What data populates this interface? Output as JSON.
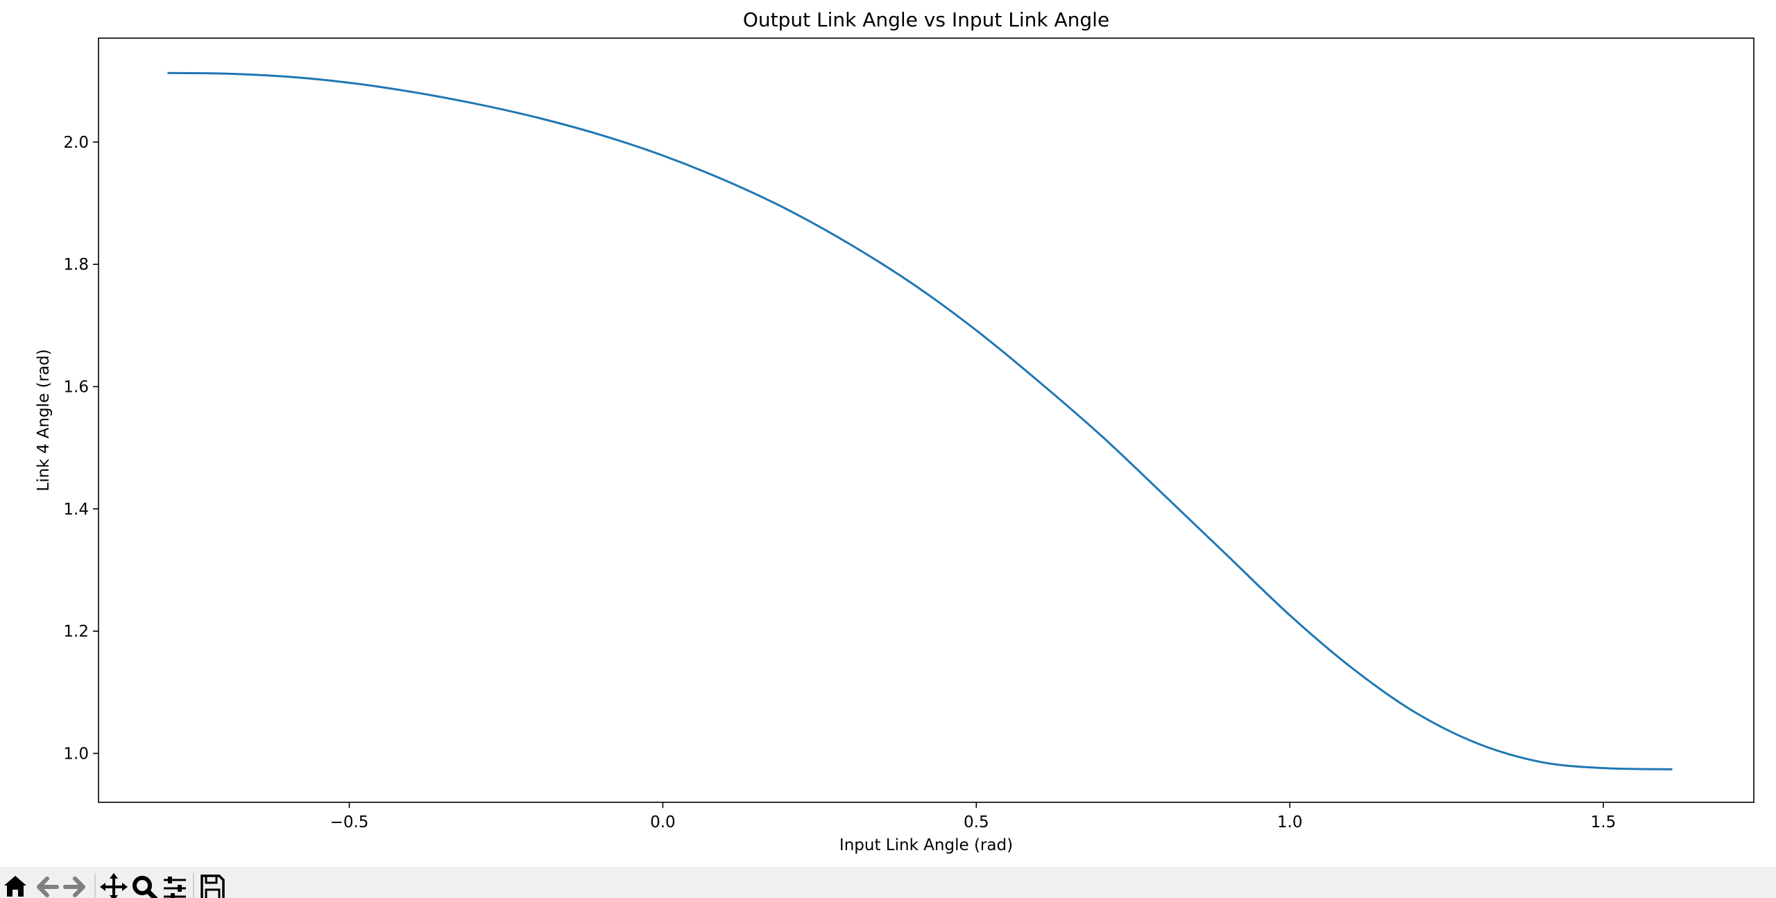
{
  "chart_data": {
    "type": "line",
    "title": "Output Link Angle vs Input Link Angle",
    "xlabel": "Input Link Angle (rad)",
    "ylabel": "Link 4 Angle (rad)",
    "xlim": [
      -0.9,
      1.74
    ],
    "ylim": [
      0.92,
      2.17
    ],
    "xticks": [
      -0.5,
      0.0,
      0.5,
      1.0,
      1.5
    ],
    "xtick_labels": [
      "−0.5",
      "0.0",
      "0.5",
      "1.0",
      "1.5"
    ],
    "yticks": [
      1.0,
      1.2,
      1.4,
      1.6,
      1.8,
      2.0
    ],
    "ytick_labels": [
      "1.0",
      "1.2",
      "1.4",
      "1.6",
      "1.8",
      "2.0"
    ],
    "grid": false,
    "legend": "none",
    "series": [
      {
        "color": "#1f77b4",
        "x": [
          -0.79,
          -0.7,
          -0.6,
          -0.5,
          -0.4,
          -0.3,
          -0.2,
          -0.1,
          0.0,
          0.1,
          0.2,
          0.3,
          0.4,
          0.5,
          0.6,
          0.7,
          0.8,
          0.9,
          1.0,
          1.1,
          1.2,
          1.3,
          1.4,
          1.5,
          1.61
        ],
        "y": [
          2.113,
          2.112,
          2.107,
          2.097,
          2.082,
          2.063,
          2.04,
          2.012,
          1.978,
          1.937,
          1.889,
          1.832,
          1.767,
          1.692,
          1.608,
          1.519,
          1.422,
          1.324,
          1.226,
          1.139,
          1.067,
          1.016,
          0.986,
          0.976,
          0.974
        ]
      }
    ]
  },
  "toolbar": {
    "buttons": [
      {
        "name": "home-icon",
        "label": "Home"
      },
      {
        "name": "back-icon",
        "label": "Back"
      },
      {
        "name": "forward-icon",
        "label": "Forward"
      },
      {
        "name": "pan-icon",
        "label": "Pan"
      },
      {
        "name": "zoom-icon",
        "label": "Zoom"
      },
      {
        "name": "configure-subplots-icon",
        "label": "Subplots"
      },
      {
        "name": "save-icon",
        "label": "Save"
      }
    ]
  }
}
